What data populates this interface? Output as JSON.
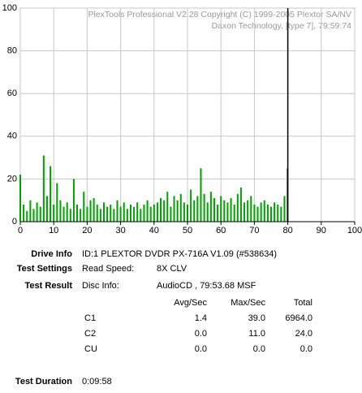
{
  "chart_data": {
    "type": "bar",
    "watermark": [
      "PlexTools Professional V2.28 Copyright (C) 1999-2005 Plextor SA/NV",
      "Daxon Technology, [type 7], 79:59:74"
    ],
    "x": [
      0,
      1,
      2,
      3,
      4,
      5,
      6,
      7,
      8,
      9,
      10,
      11,
      12,
      13,
      14,
      15,
      16,
      17,
      18,
      19,
      20,
      21,
      22,
      23,
      24,
      25,
      26,
      27,
      28,
      29,
      30,
      31,
      32,
      33,
      34,
      35,
      36,
      37,
      38,
      39,
      40,
      41,
      42,
      43,
      44,
      45,
      46,
      47,
      48,
      49,
      50,
      51,
      52,
      53,
      54,
      55,
      56,
      57,
      58,
      59,
      60,
      61,
      62,
      63,
      64,
      65,
      66,
      67,
      68,
      69,
      70,
      71,
      72,
      73,
      74,
      75,
      76,
      77,
      78,
      79,
      79.9
    ],
    "values": [
      22,
      8,
      5,
      10,
      6,
      9,
      7,
      31,
      12,
      26,
      8,
      18,
      10,
      7,
      9,
      6,
      20,
      8,
      6,
      14,
      7,
      10,
      11,
      8,
      6,
      9,
      7,
      8,
      6,
      10,
      7,
      9,
      6,
      8,
      7,
      9,
      6,
      8,
      10,
      7,
      8,
      9,
      11,
      10,
      14,
      7,
      12,
      10,
      13,
      9,
      8,
      15,
      10,
      12,
      25,
      13,
      9,
      14,
      11,
      8,
      12,
      10,
      9,
      11,
      8,
      13,
      16,
      9,
      10,
      12,
      8,
      7,
      9,
      10,
      8,
      7,
      9,
      8,
      7,
      12,
      25
    ],
    "color": "#00a000",
    "vline_x": 80,
    "xlim": [
      0,
      100
    ],
    "xticks": [
      0,
      10,
      20,
      30,
      40,
      50,
      60,
      70,
      80,
      90,
      100
    ],
    "ylim": [
      0,
      100
    ],
    "yticks": [
      0,
      20,
      40,
      60,
      80,
      100
    ],
    "grid": true
  },
  "info": {
    "drive_info": {
      "label": "Drive Info",
      "value": "ID:1 PLEXTOR DVDR PX-716A V1.09 (#538634)"
    },
    "test_settings": {
      "label": "Test Settings",
      "key": "Read Speed:",
      "value": "8X CLV"
    },
    "test_result": {
      "label": "Test Result",
      "key": "Disc Info:",
      "value": "AudioCD , 79:53.68 MSF"
    },
    "stats": {
      "headers": [
        "Avg/Sec",
        "Max/Sec",
        "Total"
      ],
      "rows": [
        [
          "C1",
          "1.4",
          "39.0",
          "6964.0"
        ],
        [
          "C2",
          "0.0",
          "11.0",
          "24.0"
        ],
        [
          "CU",
          "0.0",
          "0.0",
          "0.0"
        ]
      ]
    },
    "test_duration": {
      "label": "Test Duration",
      "value": "0:09:58"
    }
  }
}
